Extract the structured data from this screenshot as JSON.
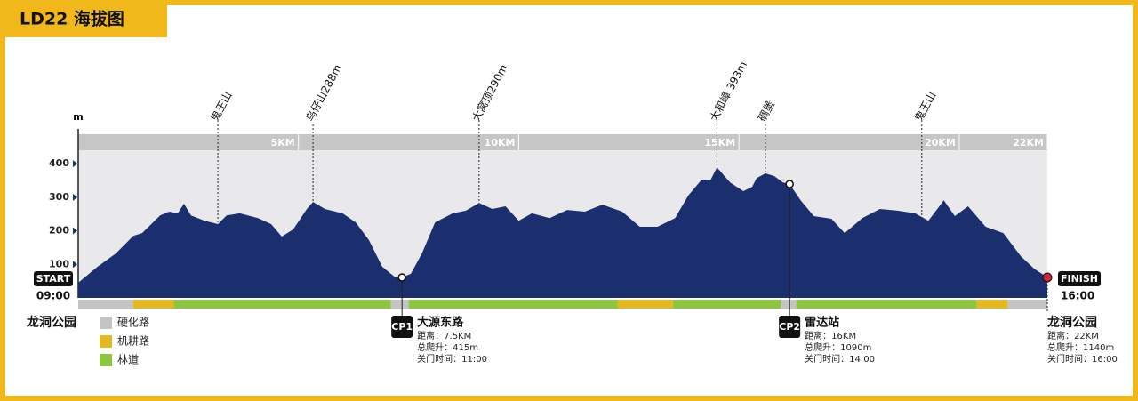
{
  "chart_data": {
    "type": "area",
    "title": "LD22 海拔图",
    "y_label": "m",
    "color": "#1b2f6e",
    "xlim": [
      0,
      22
    ],
    "ylim": [
      0,
      440
    ],
    "yticks": [
      100,
      200,
      300,
      400
    ],
    "xticks": [
      {
        "value": 5,
        "label": "5KM"
      },
      {
        "value": 10,
        "label": "10KM"
      },
      {
        "value": 15,
        "label": "15KM"
      },
      {
        "value": 20,
        "label": "20KM"
      },
      {
        "value": 22,
        "label": "22KM"
      }
    ],
    "x": [
      0,
      0.44,
      0.85,
      1.25,
      1.45,
      1.86,
      2.06,
      2.26,
      2.4,
      2.56,
      2.87,
      3.17,
      3.37,
      3.67,
      4.08,
      4.38,
      4.62,
      4.88,
      5.19,
      5.33,
      5.6,
      6.0,
      6.3,
      6.6,
      6.9,
      7.2,
      7.35,
      7.55,
      7.8,
      8.1,
      8.5,
      8.8,
      9.1,
      9.4,
      9.7,
      10.0,
      10.3,
      10.7,
      11.1,
      11.5,
      11.9,
      12.35,
      12.75,
      13.15,
      13.55,
      13.85,
      14.15,
      14.35,
      14.5,
      14.8,
      15.1,
      15.3,
      15.4,
      15.6,
      15.8,
      16.0,
      16.15,
      16.4,
      16.7,
      17.1,
      17.4,
      17.8,
      18.2,
      18.6,
      19.0,
      19.3,
      19.65,
      19.9,
      20.2,
      20.6,
      21.0,
      21.4,
      21.7,
      22.0
    ],
    "values": [
      45,
      93,
      132,
      185,
      193,
      246,
      257,
      252,
      281,
      246,
      230,
      220,
      246,
      252,
      238,
      220,
      183,
      204,
      265,
      286,
      265,
      252,
      225,
      172,
      93,
      61,
      61,
      72,
      132,
      225,
      252,
      260,
      283,
      265,
      273,
      230,
      252,
      238,
      262,
      257,
      278,
      257,
      212,
      212,
      238,
      305,
      352,
      350,
      389,
      344,
      318,
      331,
      357,
      371,
      363,
      344,
      339,
      291,
      244,
      236,
      193,
      238,
      265,
      260,
      252,
      230,
      291,
      244,
      273,
      212,
      193,
      124,
      87,
      61
    ],
    "annotations": [
      {
        "text": "鬼王山",
        "x": 3.17
      },
      {
        "text": "乌仔山288m",
        "x": 5.33
      },
      {
        "text": "大窝顶290m",
        "x": 9.1
      },
      {
        "text": "大和嶂 393m",
        "x": 14.5
      },
      {
        "text": "碉堡",
        "x": 15.6
      },
      {
        "text": "鬼王山",
        "x": 19.15
      }
    ],
    "start": {
      "label": "START",
      "time": "09:00",
      "place": "龙洞公园"
    },
    "finish": {
      "label": "FINISH",
      "time": "16:00",
      "place": "龙洞公园",
      "x": 22.0,
      "elevation": 61,
      "details": [
        "距离：22KM",
        "总爬升：1140m",
        "关门时间：16:00"
      ]
    },
    "checkpoints": [
      {
        "label": "CP1",
        "name": "大源东路",
        "x": 7.35,
        "elevation": 61,
        "details": [
          "距离：7.5KM",
          "总爬升：415m",
          "关门时间：11:00"
        ]
      },
      {
        "label": "CP2",
        "name": "雷达站",
        "x": 16.15,
        "elevation": 339,
        "details": [
          "距离：16KM",
          "总爬升：1090m",
          "关门时间：14:00"
        ]
      }
    ],
    "surfaces": [
      {
        "name": "硬化路",
        "color": "#c4c4c4"
      },
      {
        "name": "机耕路",
        "color": "#e6b820"
      },
      {
        "name": "林道",
        "color": "#8cc63f"
      }
    ],
    "surface_segments": [
      {
        "start": 0,
        "end": 1.25,
        "surface": 0
      },
      {
        "start": 1.25,
        "end": 2.17,
        "surface": 1
      },
      {
        "start": 2.17,
        "end": 7.1,
        "surface": 2
      },
      {
        "start": 7.1,
        "end": 7.5,
        "surface": 0
      },
      {
        "start": 7.5,
        "end": 12.25,
        "surface": 2
      },
      {
        "start": 12.25,
        "end": 13.5,
        "surface": 1
      },
      {
        "start": 13.5,
        "end": 15.95,
        "surface": 2
      },
      {
        "start": 15.95,
        "end": 16.3,
        "surface": 0
      },
      {
        "start": 16.3,
        "end": 20.4,
        "surface": 2
      },
      {
        "start": 20.4,
        "end": 21.1,
        "surface": 1
      },
      {
        "start": 21.1,
        "end": 22,
        "surface": 0
      }
    ]
  }
}
